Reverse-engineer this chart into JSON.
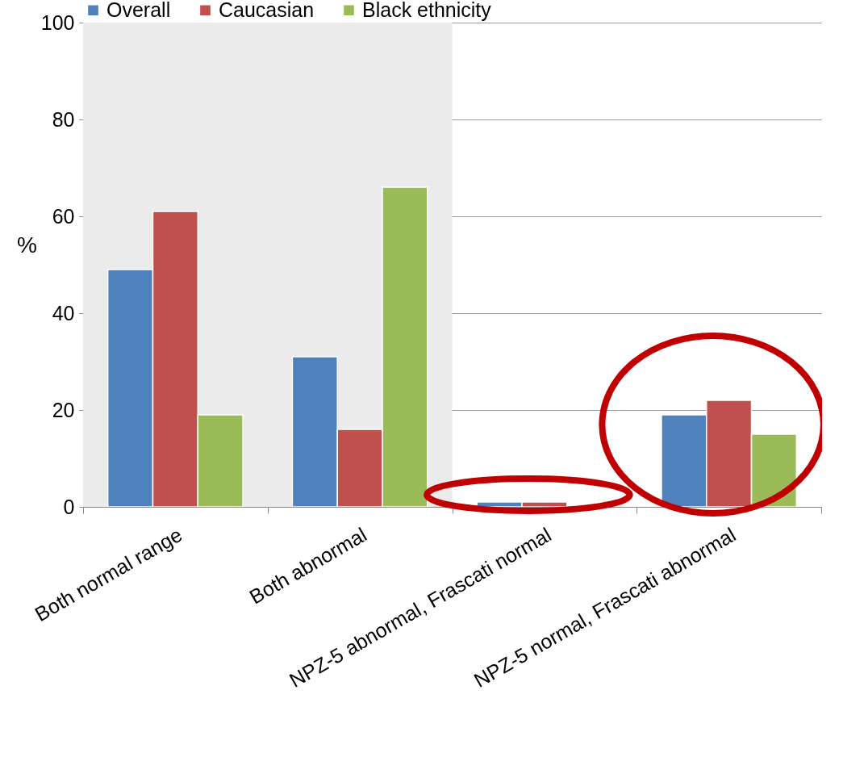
{
  "chart_data": {
    "type": "bar",
    "ylabel": "%",
    "categories": [
      "Both normal range",
      "Both abnormal",
      "NPZ-5 abnormal, Frascati normal",
      "NPZ-5 normal, Frascati abnormal"
    ],
    "series": [
      {
        "name": "Overall",
        "color": "#4f81bd",
        "values": [
          49,
          31,
          1,
          19
        ]
      },
      {
        "name": "Caucasian",
        "color": "#c0504d",
        "values": [
          61,
          16,
          1,
          22
        ]
      },
      {
        "name": "Black ethnicity",
        "color": "#9bbb59",
        "values": [
          19,
          66,
          null,
          15
        ]
      }
    ],
    "ylim": [
      0,
      100
    ],
    "yticks": [
      0,
      20,
      40,
      60,
      80,
      100
    ],
    "grid": "y",
    "legend": "top",
    "bands": [
      {
        "axis": "x",
        "from": "Both normal range",
        "to": "Both abnormal",
        "color": "#ebebeb"
      }
    ]
  }
}
